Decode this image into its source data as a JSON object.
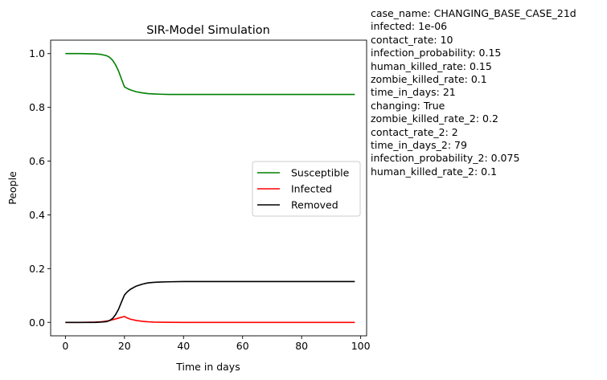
{
  "chart_data": {
    "type": "line",
    "title": "SIR-Model Simulation",
    "xlabel": "Time in days",
    "ylabel": "People",
    "xlim": [
      -5,
      102
    ],
    "ylim": [
      -0.05,
      1.05
    ],
    "xticks": [
      0,
      20,
      40,
      60,
      80,
      100
    ],
    "yticks": [
      0.0,
      0.2,
      0.4,
      0.6,
      0.8,
      1.0
    ],
    "xtick_labels": [
      "0",
      "20",
      "40",
      "60",
      "80",
      "100"
    ],
    "ytick_labels": [
      "0.0",
      "0.2",
      "0.4",
      "0.6",
      "0.8",
      "1.0"
    ],
    "grid": false,
    "legend_position": "center-right",
    "x": [
      0,
      5,
      10,
      12,
      14,
      15,
      16,
      17,
      18,
      19,
      20,
      21,
      22,
      24,
      26,
      28,
      30,
      32,
      35,
      40,
      45,
      50,
      60,
      70,
      80,
      90,
      98
    ],
    "series": [
      {
        "name": "Susceptible",
        "color": "#008000",
        "values": [
          1.0,
          1.0,
          0.999,
          0.997,
          0.992,
          0.986,
          0.975,
          0.958,
          0.935,
          0.905,
          0.876,
          0.87,
          0.865,
          0.858,
          0.854,
          0.851,
          0.85,
          0.849,
          0.848,
          0.848,
          0.848,
          0.848,
          0.848,
          0.848,
          0.848,
          0.848,
          0.848
        ]
      },
      {
        "name": "Infected",
        "color": "#ff0000",
        "values": [
          0.0,
          0.0,
          0.001,
          0.002,
          0.005,
          0.007,
          0.01,
          0.013,
          0.016,
          0.019,
          0.022,
          0.016,
          0.012,
          0.007,
          0.004,
          0.002,
          0.001,
          0.0005,
          0.0002,
          0.0,
          0.0,
          0.0,
          0.0,
          0.0,
          0.0,
          0.0,
          0.0
        ]
      },
      {
        "name": "Removed",
        "color": "#000000",
        "values": [
          0.0,
          0.0,
          0.0,
          0.001,
          0.003,
          0.007,
          0.015,
          0.029,
          0.049,
          0.076,
          0.102,
          0.114,
          0.123,
          0.135,
          0.142,
          0.147,
          0.149,
          0.15,
          0.151,
          0.152,
          0.152,
          0.152,
          0.152,
          0.152,
          0.152,
          0.152,
          0.152
        ]
      }
    ]
  },
  "parameters": [
    "case_name: CHANGING_BASE_CASE_21d",
    "infected: 1e-06",
    "contact_rate: 10",
    "infection_probability: 0.15",
    "human_killed_rate: 0.15",
    "zombie_killed_rate: 0.1",
    "time_in_days: 21",
    "changing: True",
    "zombie_killed_rate_2: 0.2",
    "contact_rate_2: 2",
    "time_in_days_2: 79",
    "infection_probability_2: 0.075",
    "human_killed_rate_2: 0.1"
  ]
}
